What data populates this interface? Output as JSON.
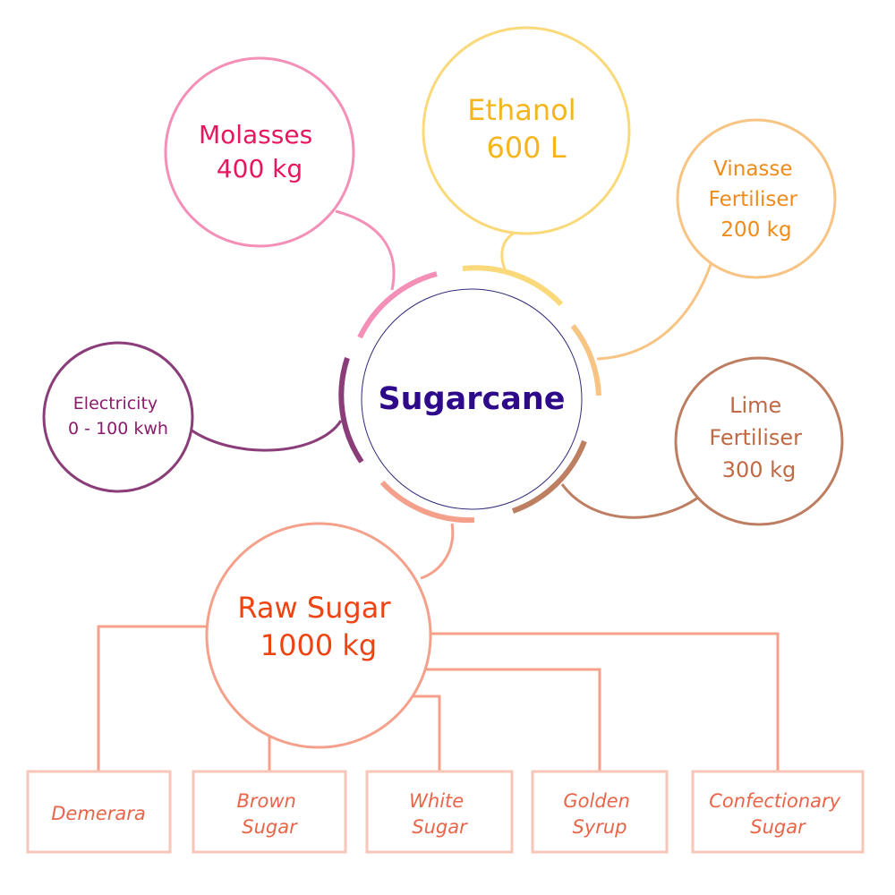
{
  "center": {
    "label": "Sugarcane",
    "color": "#2E0A8A"
  },
  "nodes": {
    "molasses": {
      "lines": [
        "Molasses",
        "400 kg"
      ],
      "color": "#E8175D",
      "stroke": "#F48FB8"
    },
    "ethanol": {
      "lines": [
        "Ethanol",
        "600 L"
      ],
      "color": "#F5B51C",
      "stroke": "#F9D97A"
    },
    "vinasse": {
      "lines": [
        "Vinasse",
        "Fertiliser",
        "200 kg"
      ],
      "color": "#EE8B1A",
      "stroke": "#F8C484"
    },
    "electricity": {
      "lines": [
        "Electricity",
        "0 - 100 kwh"
      ],
      "color": "#8B1B6B",
      "stroke": "#8A3D78"
    },
    "lime": {
      "lines": [
        "Lime",
        "Fertiliser",
        "300 kg"
      ],
      "color": "#C06A45",
      "stroke": "#BE7E62"
    },
    "raw_sugar": {
      "lines": [
        "Raw Sugar",
        "1000 kg"
      ],
      "color": "#EE4412",
      "stroke": "#F5A08A"
    }
  },
  "products": [
    {
      "lines": [
        "Demerara"
      ]
    },
    {
      "lines": [
        "Brown",
        "Sugar"
      ]
    },
    {
      "lines": [
        "White",
        "Sugar"
      ]
    },
    {
      "lines": [
        "Golden",
        "Syrup"
      ]
    },
    {
      "lines": [
        "Confectionary",
        "Sugar"
      ]
    }
  ],
  "product_text_color": "#E8654A",
  "product_box_color": "#F8C6B8",
  "connector_color": "#F5A08A"
}
